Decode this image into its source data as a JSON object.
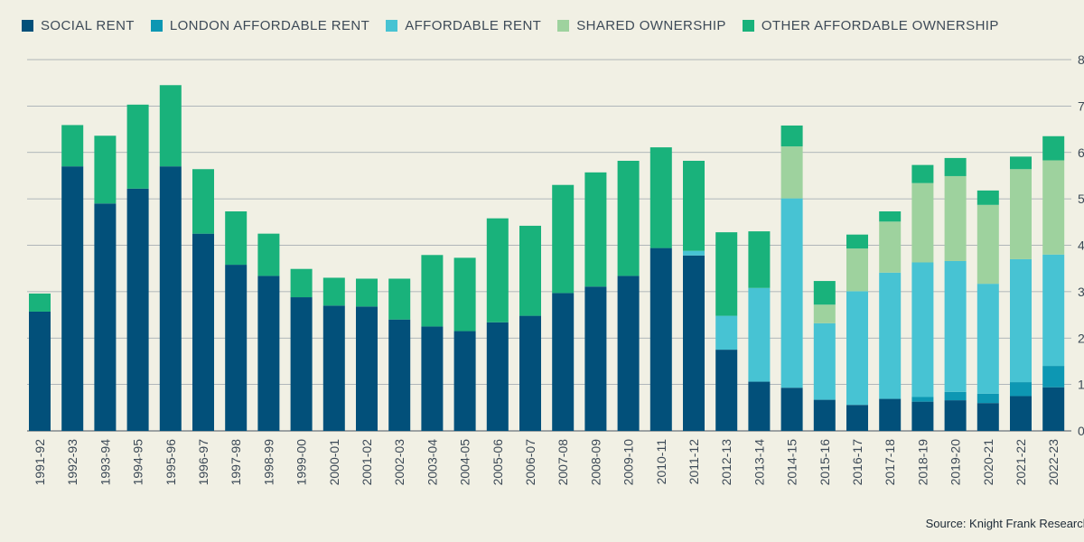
{
  "chart_data": {
    "type": "bar",
    "stacked": true,
    "title": "",
    "xlabel": "",
    "ylabel": "",
    "ylim": [
      0,
      8000
    ],
    "y_ticks": [
      0,
      1000,
      2000,
      3000,
      4000,
      5000,
      6000,
      7000,
      8000
    ],
    "y_tick_labels": [
      "0",
      "1",
      "2",
      "3",
      "4",
      "5",
      "6",
      "7",
      "8"
    ],
    "grid": true,
    "legend_position": "top-left",
    "categories": [
      "1991-92",
      "1992-93",
      "1993-94",
      "1994-95",
      "1995-96",
      "1996-97",
      "1997-98",
      "1998-99",
      "1999-00",
      "2000-01",
      "2001-02",
      "2002-03",
      "2003-04",
      "2004-05",
      "2005-06",
      "2006-07",
      "2007-08",
      "2008-09",
      "2009-10",
      "2010-11",
      "2011-12",
      "2012-13",
      "2013-14",
      "2014-15",
      "2015-16",
      "2016-17",
      "2017-18",
      "2018-19",
      "2019-20",
      "2020-21",
      "2021-22",
      "2022-23"
    ],
    "series": [
      {
        "name": "SOCIAL RENT",
        "color": "#02507a",
        "values": [
          2570,
          5700,
          4900,
          5220,
          5700,
          4250,
          3580,
          3340,
          2880,
          2700,
          2680,
          2400,
          2250,
          2150,
          2340,
          2480,
          2970,
          3110,
          3340,
          3940,
          3780,
          1750,
          1060,
          930,
          670,
          560,
          690,
          630,
          660,
          600,
          750,
          940
        ]
      },
      {
        "name": "LONDON AFFORDABLE RENT",
        "color": "#0d97b3",
        "values": [
          0,
          0,
          0,
          0,
          0,
          0,
          0,
          0,
          0,
          0,
          0,
          0,
          0,
          0,
          0,
          0,
          0,
          0,
          0,
          0,
          0,
          0,
          0,
          0,
          0,
          0,
          0,
          100,
          180,
          200,
          300,
          460
        ]
      },
      {
        "name": "AFFORDABLE RENT",
        "color": "#47c3d3",
        "values": [
          0,
          0,
          0,
          0,
          0,
          0,
          0,
          0,
          0,
          0,
          0,
          0,
          0,
          0,
          0,
          0,
          0,
          0,
          0,
          0,
          100,
          730,
          2020,
          4080,
          1650,
          2450,
          2720,
          2900,
          2820,
          2370,
          2650,
          2400
        ]
      },
      {
        "name": "SHARED OWNERSHIP",
        "color": "#9ed29e",
        "values": [
          0,
          0,
          0,
          0,
          0,
          0,
          0,
          0,
          0,
          0,
          0,
          0,
          0,
          0,
          0,
          0,
          0,
          0,
          0,
          0,
          0,
          0,
          0,
          1120,
          400,
          920,
          1100,
          1710,
          1830,
          1700,
          1940,
          2030
        ]
      },
      {
        "name": "OTHER AFFORDABLE OWNERSHIP",
        "color": "#19b27b",
        "values": [
          390,
          890,
          1460,
          1810,
          1750,
          1390,
          1150,
          910,
          610,
          600,
          600,
          880,
          1540,
          1580,
          2240,
          1940,
          2330,
          2460,
          2480,
          2170,
          1940,
          1800,
          1220,
          450,
          510,
          300,
          220,
          390,
          390,
          310,
          270,
          520
        ]
      }
    ]
  },
  "source": "Source: Knight Frank Research",
  "colors": {
    "background": "#f1f0e4",
    "gridline": "#9aa3ab",
    "text": "#3d4a57"
  }
}
